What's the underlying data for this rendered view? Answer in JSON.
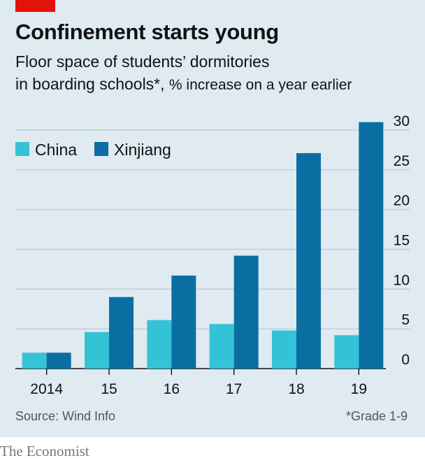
{
  "header": {
    "title": "Confinement starts young",
    "subtitle_line1": "Floor space of students’ dormitories",
    "subtitle_line2": "in boarding schools*,",
    "subtitle_unit": "% increase on a year earlier"
  },
  "colors": {
    "accent": "#e3120b",
    "background": "#dfeaf1",
    "china": "#34c2d6",
    "xinjiang": "#0a6ea3",
    "gridline": "#b9c8d2",
    "axis": "#121212"
  },
  "chart_data": {
    "type": "bar",
    "categories": [
      "2014",
      "15",
      "16",
      "17",
      "18",
      "19"
    ],
    "series": [
      {
        "name": "China",
        "values": [
          2.0,
          4.6,
          6.1,
          5.6,
          4.8,
          4.2
        ]
      },
      {
        "name": "Xinjiang",
        "values": [
          2.0,
          9.0,
          11.7,
          14.2,
          27.1,
          31.0
        ]
      }
    ],
    "ylim": [
      0,
      30
    ],
    "yticks": [
      "0",
      "5",
      "10",
      "15",
      "20",
      "25",
      "30"
    ],
    "y_axis_position": "right",
    "grid": true,
    "legend_position": "top-left"
  },
  "footer": {
    "source": "Source: Wind Info",
    "footnote": "*Grade 1-9",
    "brand": "The Economist"
  }
}
